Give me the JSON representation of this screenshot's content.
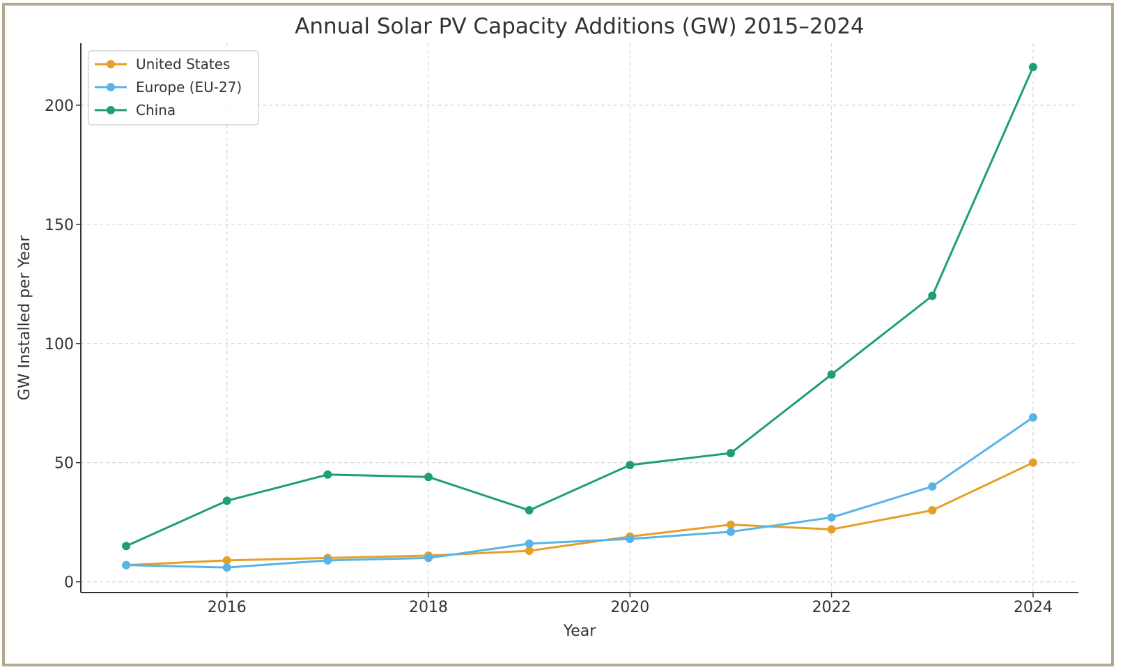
{
  "chart_data": {
    "type": "line",
    "title": "Annual Solar PV Capacity Additions (GW) 2015–2024",
    "xlabel": "Year",
    "ylabel": "GW Installed per Year",
    "x": [
      2015,
      2016,
      2017,
      2018,
      2019,
      2020,
      2021,
      2022,
      2023,
      2024
    ],
    "xlim": [
      2014.55,
      2024.45
    ],
    "ylim": [
      -4.5,
      226
    ],
    "xticks": [
      2016,
      2018,
      2020,
      2022,
      2024
    ],
    "yticks": [
      0,
      50,
      100,
      150,
      200
    ],
    "grid": true,
    "legend_position": "top-left",
    "series": [
      {
        "name": "United States",
        "color": "#e69f26",
        "marker": "circle",
        "values": [
          7,
          9,
          10,
          11,
          13,
          19,
          24,
          22,
          30,
          50
        ]
      },
      {
        "name": "Europe (EU-27)",
        "color": "#56b4e9",
        "marker": "circle",
        "values": [
          7,
          6,
          9,
          10,
          16,
          18,
          21,
          27,
          40,
          69
        ]
      },
      {
        "name": "China",
        "color": "#1f9e74",
        "marker": "circle",
        "values": [
          15,
          34,
          45,
          44,
          30,
          49,
          54,
          87,
          120,
          216
        ]
      }
    ]
  },
  "colors": {
    "frame": "#b3a78f",
    "axis": "#333333",
    "grid": "#d6d6d6"
  }
}
